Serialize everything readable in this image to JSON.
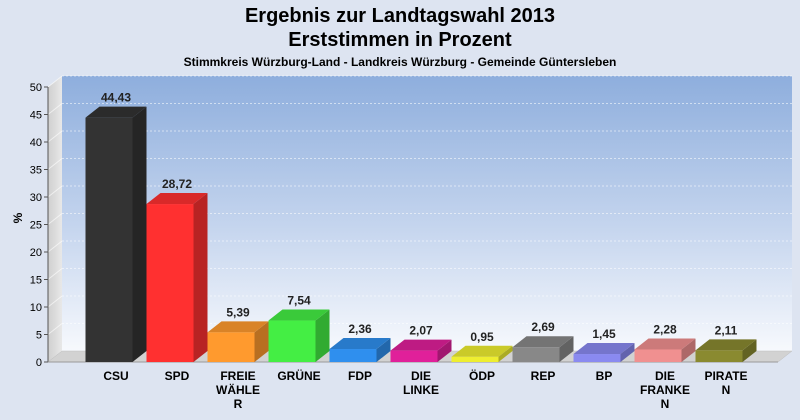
{
  "chart_data": {
    "type": "bar",
    "title": "Ergebnis zur Landtagswahl 2013",
    "subtitle": "Erststimmen in Prozent",
    "caption": "Stimmkreis Würzburg-Land - Landkreis Würzburg - Gemeinde Güntersleben",
    "ylabel": "%",
    "ylim": [
      0,
      50
    ],
    "yticks": [
      0,
      5,
      10,
      15,
      20,
      25,
      30,
      35,
      40,
      45,
      50
    ],
    "grid": true,
    "categories": [
      "CSU",
      "SPD",
      "FREIE WÄHLER",
      "GRÜNE",
      "FDP",
      "DIE LINKE",
      "ÖDP",
      "REP",
      "BP",
      "DIE FRANKEN",
      "PIRATEN"
    ],
    "category_lines": [
      [
        "CSU"
      ],
      [
        "SPD"
      ],
      [
        "FREIE",
        "WÄHLE",
        "R"
      ],
      [
        "GRÜNE"
      ],
      [
        "FDP"
      ],
      [
        "DIE",
        "LINKE"
      ],
      [
        "ÖDP"
      ],
      [
        "REP"
      ],
      [
        "BP"
      ],
      [
        "DIE",
        "FRANKE",
        "N"
      ],
      [
        "PIRATE",
        "N"
      ]
    ],
    "values": [
      44.43,
      28.72,
      5.39,
      7.54,
      2.36,
      2.07,
      0.95,
      2.69,
      1.45,
      2.28,
      2.11
    ],
    "value_labels": [
      "44,43",
      "28,72",
      "5,39",
      "7,54",
      "2,36",
      "2,07",
      "0,95",
      "2,69",
      "1,45",
      "2,28",
      "2,11"
    ],
    "colors": [
      "#333333",
      "#ff3030",
      "#ff9a2e",
      "#44ee44",
      "#2f8fee",
      "#e0209a",
      "#eeee30",
      "#888888",
      "#8a8af0",
      "#f09090",
      "#8a8a30"
    ]
  }
}
